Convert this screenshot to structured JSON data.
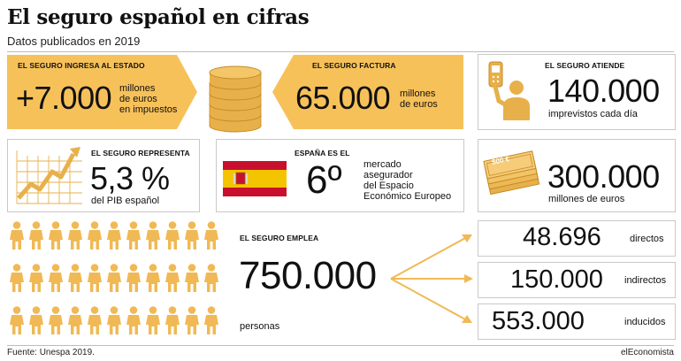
{
  "header": {
    "title": "El seguro español en cifras",
    "subtitle": "Datos publicados en 2019"
  },
  "ingresa": {
    "label": "EL SEGURO INGRESA AL ESTADO",
    "value": "+7.000",
    "unit_lines": [
      "millones",
      "de euros",
      "en impuestos"
    ]
  },
  "factura": {
    "label": "EL SEGURO FACTURA",
    "value": "65.000",
    "unit_lines": [
      "millones",
      "de euros"
    ]
  },
  "atiende": {
    "label": "EL SEGURO ATIENDE",
    "value": "140.000",
    "unit": "imprevistos cada día"
  },
  "representa": {
    "label": "EL SEGURO REPRESENTA",
    "value": "5,3 %",
    "unit": "del PIB español"
  },
  "espana": {
    "label": "ESPAÑA ES EL",
    "value": "6º",
    "desc_lines": [
      "mercado",
      "asegurador",
      "del Espacio",
      "Económico Europeo"
    ]
  },
  "billetes": {
    "banknote_text": "500 €",
    "value": "300.000",
    "unit": "millones de euros"
  },
  "emplea": {
    "label": "EL SEGURO EMPLEA",
    "value": "750.000",
    "unit": "personas",
    "breakdown": [
      {
        "value": "48.696",
        "label": "directos"
      },
      {
        "value": "150.000",
        "label": "indirectos"
      },
      {
        "value": "553.000",
        "label": "inducidos"
      }
    ]
  },
  "footer": {
    "source": "Fuente: Unespa 2019.",
    "brand": "elEconomista"
  },
  "colors": {
    "accent": "#F7C15A",
    "flag_red": "#C8102E",
    "flag_yellow": "#F5C400"
  }
}
